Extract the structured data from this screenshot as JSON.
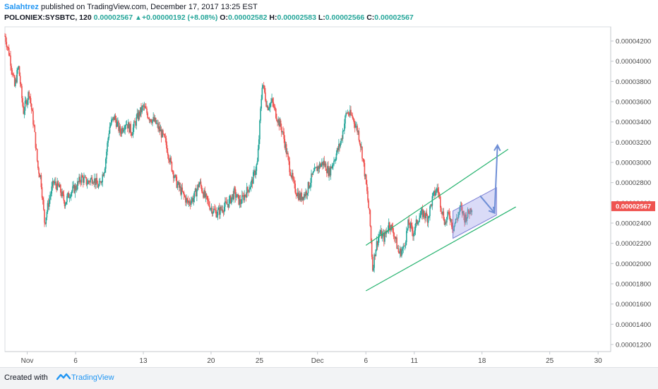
{
  "header": {
    "author": "Salahtrez",
    "published_text": "published on TradingView.com, December 17, 2017 13:25 EST",
    "symbol": "POLONIEX:SYSBTC, 120",
    "last": "0.00002567",
    "change": "+0.00000192 (+8.08%)",
    "o_label": "O:",
    "o_value": "0.00002582",
    "h_label": "H:",
    "h_value": "0.00002583",
    "l_label": "L:",
    "l_value": "0.00002566",
    "c_label": "C:",
    "c_value": "0.00002567"
  },
  "footer": {
    "created_with": "Created with",
    "brand": "TradingView"
  },
  "colors": {
    "up": "#26a69a",
    "down": "#ef5350",
    "channel": "#26b36f",
    "box_fill": "#9598e8",
    "arrow": "#6f8fd6",
    "price_badge": "#ef5350",
    "axis_text": "#4a4a4a"
  },
  "chart_data": {
    "type": "candlestick",
    "x_axis": {
      "ticks": [
        {
          "label": "Nov",
          "day": 0
        },
        {
          "label": "6",
          "day": 5
        },
        {
          "label": "13",
          "day": 12
        },
        {
          "label": "20",
          "day": 19
        },
        {
          "label": "25",
          "day": 24
        },
        {
          "label": "Dec",
          "day": 30
        },
        {
          "label": "6",
          "day": 35
        },
        {
          "label": "11",
          "day": 40
        },
        {
          "label": "18",
          "day": 47
        },
        {
          "label": "25",
          "day": 54
        },
        {
          "label": "30",
          "day": 59
        }
      ],
      "range": [
        -2.3,
        60.3
      ]
    },
    "y_axis": {
      "ticks": [
        "0.00001200",
        "0.00001400",
        "0.00001600",
        "0.00001800",
        "0.00002000",
        "0.00002200",
        "0.00002400",
        "0.00002600",
        "0.00002800",
        "0.00003000",
        "0.00003200",
        "0.00003400",
        "0.00003600",
        "0.00003800",
        "0.00004000",
        "0.00004200"
      ],
      "range": [
        1.13e-05,
        4.34e-05
      ]
    },
    "last_price": "0.00002567",
    "price_path": [
      [
        -2.3,
        4.25
      ],
      [
        -1.8,
        4.05
      ],
      [
        -1.3,
        3.75
      ],
      [
        -0.9,
        3.95
      ],
      [
        -0.4,
        3.5
      ],
      [
        0.2,
        3.7
      ],
      [
        0.7,
        3.35
      ],
      [
        1.1,
        2.95
      ],
      [
        1.4,
        2.85
      ],
      [
        1.8,
        2.4
      ],
      [
        2.2,
        2.6
      ],
      [
        2.7,
        2.8
      ],
      [
        3.3,
        2.75
      ],
      [
        3.9,
        2.6
      ],
      [
        4.4,
        2.7
      ],
      [
        5.0,
        2.75
      ],
      [
        5.6,
        2.85
      ],
      [
        6.2,
        2.8
      ],
      [
        6.8,
        2.85
      ],
      [
        7.4,
        2.75
      ],
      [
        8.0,
        2.95
      ],
      [
        8.5,
        3.35
      ],
      [
        9.0,
        3.45
      ],
      [
        9.6,
        3.3
      ],
      [
        10.2,
        3.4
      ],
      [
        10.8,
        3.3
      ],
      [
        11.4,
        3.45
      ],
      [
        12.0,
        3.55
      ],
      [
        12.6,
        3.45
      ],
      [
        13.2,
        3.4
      ],
      [
        13.8,
        3.3
      ],
      [
        14.3,
        3.2
      ],
      [
        14.8,
        3.0
      ],
      [
        15.4,
        2.8
      ],
      [
        16.0,
        2.7
      ],
      [
        16.6,
        2.6
      ],
      [
        17.2,
        2.65
      ],
      [
        17.8,
        2.8
      ],
      [
        18.4,
        2.65
      ],
      [
        19.0,
        2.55
      ],
      [
        19.6,
        2.5
      ],
      [
        20.2,
        2.55
      ],
      [
        20.8,
        2.6
      ],
      [
        21.4,
        2.7
      ],
      [
        22.0,
        2.6
      ],
      [
        22.6,
        2.7
      ],
      [
        23.2,
        2.8
      ],
      [
        23.8,
        3.0
      ],
      [
        24.3,
        3.8
      ],
      [
        24.8,
        3.55
      ],
      [
        25.3,
        3.6
      ],
      [
        25.8,
        3.45
      ],
      [
        26.4,
        3.3
      ],
      [
        27.0,
        3.0
      ],
      [
        27.6,
        2.75
      ],
      [
        28.2,
        2.65
      ],
      [
        28.8,
        2.7
      ],
      [
        29.4,
        2.85
      ],
      [
        30.0,
        2.95
      ],
      [
        30.6,
        3.0
      ],
      [
        31.2,
        2.9
      ],
      [
        31.8,
        3.05
      ],
      [
        32.4,
        3.2
      ],
      [
        33.0,
        3.5
      ],
      [
        33.6,
        3.45
      ],
      [
        34.2,
        3.3
      ],
      [
        34.6,
        3.1
      ],
      [
        35.0,
        2.8
      ],
      [
        35.4,
        2.45
      ],
      [
        35.7,
        1.95
      ],
      [
        36.0,
        2.15
      ],
      [
        36.4,
        2.3
      ],
      [
        36.9,
        2.25
      ],
      [
        37.4,
        2.4
      ],
      [
        37.9,
        2.3
      ],
      [
        38.4,
        2.1
      ],
      [
        38.9,
        2.15
      ],
      [
        39.4,
        2.4
      ],
      [
        39.9,
        2.3
      ],
      [
        40.4,
        2.45
      ],
      [
        40.9,
        2.5
      ],
      [
        41.4,
        2.45
      ],
      [
        41.9,
        2.65
      ],
      [
        42.4,
        2.75
      ],
      [
        42.8,
        2.55
      ],
      [
        43.2,
        2.4
      ],
      [
        43.6,
        2.5
      ],
      [
        44.0,
        2.35
      ],
      [
        44.4,
        2.45
      ],
      [
        44.8,
        2.55
      ],
      [
        45.2,
        2.45
      ],
      [
        45.6,
        2.5
      ],
      [
        46.0,
        2.57
      ]
    ],
    "price_path_unit": "0.00001",
    "annotations": {
      "channel_lower": [
        [
          35.0,
          1.73
        ],
        [
          50.5,
          2.56
        ]
      ],
      "channel_upper": [
        [
          35.0,
          2.18
        ],
        [
          49.7,
          3.13
        ]
      ],
      "flag_box": [
        [
          44.0,
          2.52
        ],
        [
          48.5,
          2.75
        ],
        [
          48.5,
          2.48
        ],
        [
          44.0,
          2.25
        ]
      ],
      "arrow_down": [
        [
          46.8,
          2.67
        ],
        [
          48.3,
          2.5
        ]
      ],
      "arrow_up": [
        [
          48.3,
          2.5
        ],
        [
          48.6,
          3.17
        ]
      ]
    }
  }
}
